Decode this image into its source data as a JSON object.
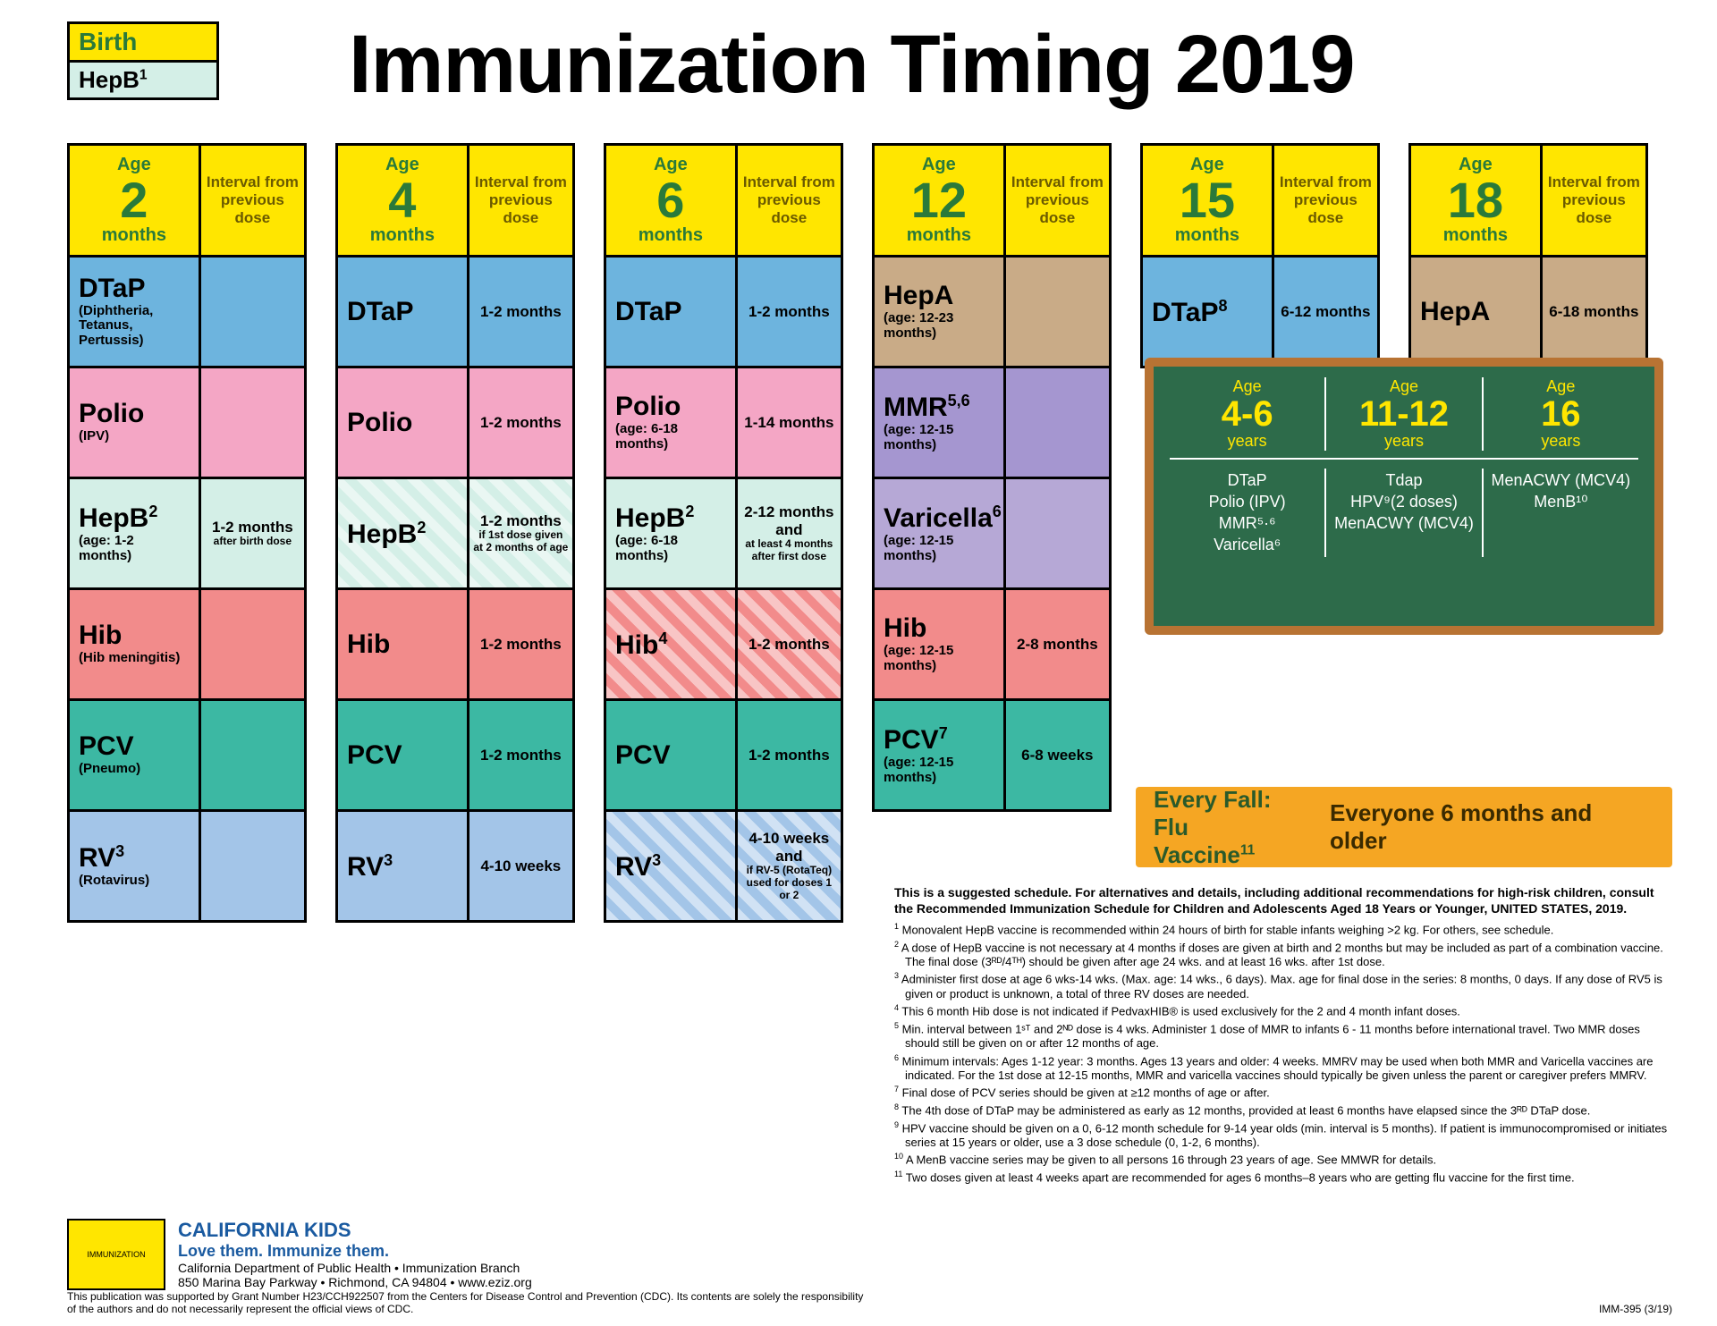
{
  "title": "Immunization Timing 2019",
  "birth": {
    "label": "Birth",
    "vaccine": "HepB",
    "sup": "1"
  },
  "header_interval_label": "Interval from previous dose",
  "header_age_label": "Age",
  "columns": [
    {
      "age_num": "2",
      "age_unit": "months",
      "rows": [
        {
          "name": "DTaP",
          "sub": "(Diphtheria, Tetanus, Pertussis)",
          "color": "c-dtap",
          "interval": ""
        },
        {
          "name": "Polio",
          "sub": "(IPV)",
          "color": "c-polio",
          "interval": ""
        },
        {
          "name": "HepB",
          "sup": "2",
          "sub": "(age: 1-2 months)",
          "color": "c-hepb",
          "interval": "1-2 months",
          "interval_sub": "after birth dose"
        },
        {
          "name": "Hib",
          "sub": "(Hib meningitis)",
          "color": "c-hib",
          "interval": ""
        },
        {
          "name": "PCV",
          "sub": "(Pneumo)",
          "color": "c-pcv",
          "interval": ""
        },
        {
          "name": "RV",
          "sup": "3",
          "sub": "(Rotavirus)",
          "color": "c-rv",
          "interval": ""
        }
      ]
    },
    {
      "age_num": "4",
      "age_unit": "months",
      "rows": [
        {
          "name": "DTaP",
          "color": "c-dtap",
          "interval": "1-2 months"
        },
        {
          "name": "Polio",
          "color": "c-polio",
          "interval": "1-2 months"
        },
        {
          "name": "HepB",
          "sup": "2",
          "color": "c-hepb",
          "hatched": true,
          "interval": "1-2 months",
          "interval_sub": "if 1st dose given at 2 months of age"
        },
        {
          "name": "Hib",
          "color": "c-hib",
          "interval": "1-2 months"
        },
        {
          "name": "PCV",
          "color": "c-pcv",
          "interval": "1-2 months"
        },
        {
          "name": "RV",
          "sup": "3",
          "color": "c-rv",
          "interval": "4-10 weeks"
        }
      ]
    },
    {
      "age_num": "6",
      "age_unit": "months",
      "rows": [
        {
          "name": "DTaP",
          "color": "c-dtap",
          "interval": "1-2 months"
        },
        {
          "name": "Polio",
          "sub": "(age: 6-18 months)",
          "color": "c-polio",
          "interval": "1-14 months"
        },
        {
          "name": "HepB",
          "sup": "2",
          "sub": "(age: 6-18 months)",
          "color": "c-hepb",
          "interval": "2-12 months and",
          "interval_sub": "at least 4 months after first dose"
        },
        {
          "name": "Hib",
          "sup": "4",
          "color": "c-hib",
          "hatched": true,
          "interval": "1-2 months"
        },
        {
          "name": "PCV",
          "color": "c-pcv",
          "interval": "1-2 months"
        },
        {
          "name": "RV",
          "sup": "3",
          "color": "c-rv",
          "hatched": true,
          "interval": "4-10 weeks and",
          "interval_sub": "if RV-5 (RotaTeq) used for doses 1 or 2"
        }
      ]
    },
    {
      "age_num": "12",
      "age_unit": "months",
      "rows": [
        {
          "name": "HepA",
          "sub": "(age: 12-23 months)",
          "color": "c-hepa",
          "interval": ""
        },
        {
          "name": "MMR",
          "sup": "5,6",
          "sub": "(age: 12-15 months)",
          "color": "c-mmr",
          "interval": ""
        },
        {
          "name": "Varicella",
          "sup": "6",
          "sub": "(age: 12-15 months)",
          "color": "c-var",
          "interval": ""
        },
        {
          "name": "Hib",
          "sub": "(age: 12-15 months)",
          "color": "c-hib",
          "interval": "2-8 months"
        },
        {
          "name": "PCV",
          "sup": "7",
          "sub": "(age: 12-15 months)",
          "color": "c-pcv",
          "interval": "6-8 weeks"
        }
      ]
    },
    {
      "age_num": "15",
      "age_unit": "months",
      "rows": [
        {
          "name": "DTaP",
          "sup": "8",
          "color": "c-dtap",
          "interval": "6-12 months"
        }
      ]
    },
    {
      "age_num": "18",
      "age_unit": "months",
      "rows": [
        {
          "name": "HepA",
          "color": "c-hepa",
          "interval": "6-18 months"
        }
      ]
    }
  ],
  "chalk": {
    "ages": [
      {
        "label": "Age",
        "num": "4-6",
        "unit": "years"
      },
      {
        "label": "Age",
        "num": "11-12",
        "unit": "years"
      },
      {
        "label": "Age",
        "num": "16",
        "unit": "years"
      }
    ],
    "cols": [
      [
        "DTaP",
        "Polio (IPV)",
        "MMR⁵·⁶",
        "Varicella⁶"
      ],
      [
        "Tdap",
        "HPV⁹(2 doses)",
        "MenACWY (MCV4)"
      ],
      [
        "MenACWY (MCV4)",
        "MenB¹⁰"
      ]
    ]
  },
  "flu": {
    "line1a": "Every Fall:",
    "line1b": "Flu Vaccine",
    "sup": "11",
    "line2": "Everyone 6 months and older"
  },
  "notes": {
    "lead": "This is a suggested schedule. For alternatives and details, including additional recommendations for high-risk children, consult the Recommended Immunization Schedule for Children and Adolescents Aged 18 Years or Younger, UNITED STATES, 2019.",
    "items": [
      "Monovalent HepB vaccine is recommended within 24 hours of birth for stable infants weighing >2 kg. For others, see schedule.",
      "A dose of HepB vaccine is not necessary at 4 months if doses are given at birth and 2 months but may be included as part of a combination vaccine. The final dose (3ᴿᴰ/4ᵀᴴ) should be given after age 24 wks. and at least 16 wks. after 1st dose.",
      "Administer first dose at age 6 wks-14 wks. (Max. age: 14 wks., 6 days). Max. age for final dose in the series: 8 months, 0 days. If any dose of RV5 is given or product is unknown, a total of three RV doses are needed.",
      "This 6 month Hib dose is not indicated if PedvaxHIB® is used exclusively for the 2 and 4 month infant doses.",
      "Min. interval between 1ˢᵀ and 2ᴺᴰ dose is 4 wks. Administer 1 dose of MMR to infants 6 - 11 months before international travel. Two MMR doses should still be given on or after 12 months of age.",
      "Minimum intervals: Ages 1-12 year: 3 months. Ages 13 years and older: 4 weeks. MMRV may be used when both MMR and Varicella vaccines are indicated. For the 1st dose at 12-15 months, MMR and varicella vaccines should typically be given unless the parent or caregiver prefers MMRV.",
      "Final dose of PCV series should be given at ≥12 months of age or after.",
      "The 4th dose of DTaP may be administered as early as 12 months, provided at least 6 months have elapsed since the 3ᴿᴰ DTaP dose.",
      "HPV vaccine should be given on a 0, 6-12 month schedule for 9-14 year olds (min. interval is 5 months). If patient is immunocompromised or initiates series at 15 years or older, use a 3 dose schedule (0, 1-2, 6 months).",
      "A MenB vaccine series may be given to all persons 16 through 23 years of age. See MMWR for details.",
      "Two doses given at least 4 weeks apart are recommended for ages 6 months–8 years who are getting flu vaccine for the first time."
    ]
  },
  "footer": {
    "t1": "CALIFORNIA KIDS",
    "t2": "Love them. Immunize them.",
    "t3a": "California Department of Public Health • Immunization Branch",
    "t3b": "850 Marina Bay Parkway • Richmond, CA 94804 • www.eziz.org",
    "disclaimer": "This publication was supported by Grant Number H23/CCH922507 from the Centers for Disease Control and Prevention (CDC). Its contents are solely the responsibility of the authors and do not necessarily represent the official views of CDC.",
    "docid": "IMM-395 (3/19)"
  },
  "colors": {
    "yellow": "#ffe600",
    "green_text": "#2a7a3a",
    "dtap": "#6db4de",
    "polio": "#f4a6c5",
    "hepb": "#d4efe7",
    "hib": "#f28b8b",
    "pcv": "#3cb8a3",
    "rv": "#a3c5e8",
    "hepa": "#c9ab87",
    "mmr": "#a596d0",
    "var": "#b6a8d6",
    "chalk_bg": "#2d6b4a",
    "chalk_border": "#b87333",
    "flu_bg": "#f5a623"
  }
}
